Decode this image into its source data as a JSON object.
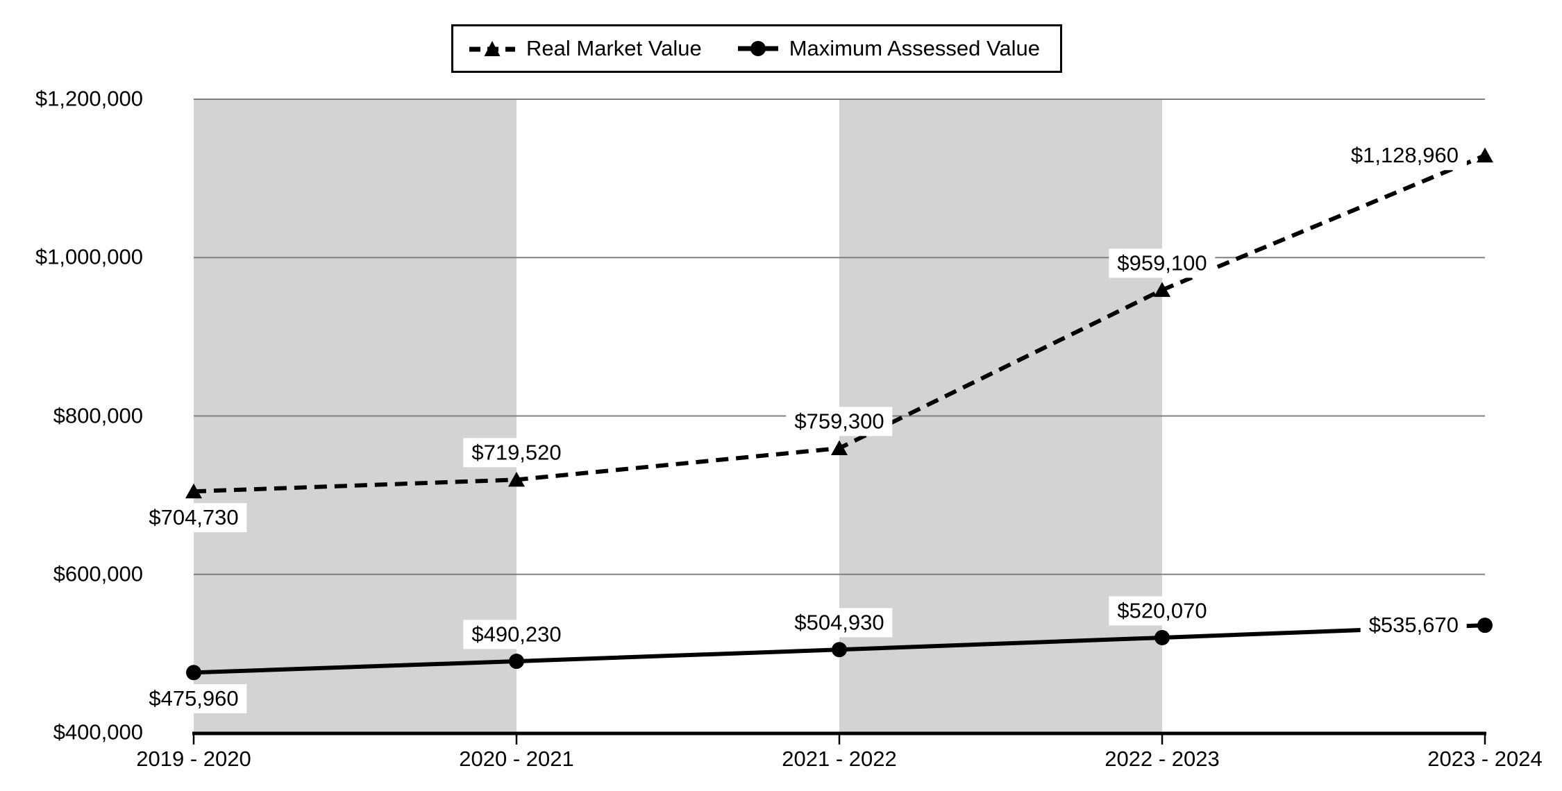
{
  "chart_data": {
    "type": "line",
    "categories": [
      "2019 - 2020",
      "2020 - 2021",
      "2021 - 2022",
      "2022 - 2023",
      "2023 - 2024"
    ],
    "series": [
      {
        "name": "Real Market Value",
        "values": [
          704730,
          719520,
          759300,
          959100,
          1128960
        ],
        "labels": [
          "$704,730",
          "$719,520",
          "$759,300",
          "$959,100",
          "$1,128,960"
        ],
        "label_positions": [
          "below",
          "above",
          "above",
          "above",
          "left"
        ],
        "line_style": "dashed",
        "marker": "triangle",
        "color": "#000000"
      },
      {
        "name": "Maximum Assessed Value",
        "values": [
          475960,
          490230,
          504930,
          520070,
          535670
        ],
        "labels": [
          "$475,960",
          "$490,230",
          "$504,930",
          "$520,070",
          "$535,670"
        ],
        "label_positions": [
          "below",
          "above",
          "above",
          "above",
          "left"
        ],
        "line_style": "solid",
        "marker": "circle",
        "color": "#000000"
      }
    ],
    "y_axis": {
      "tick_values": [
        400000,
        600000,
        800000,
        1000000,
        1200000
      ],
      "tick_labels": [
        "$400,000",
        "$600,000",
        "$800,000",
        "$1,000,000",
        "$1,200,000"
      ],
      "ylim": [
        400000,
        1200000
      ]
    },
    "x_axis": {
      "line_color": "#000000"
    },
    "legend": {
      "position": "top",
      "entries": [
        "Real Market Value",
        "Maximum Assessed Value"
      ]
    },
    "plot_bands": {
      "color": "#d3d3d3",
      "band_indices": [
        0,
        2
      ]
    },
    "gridline_color": "#808080",
    "grid": "horizontal-on"
  }
}
